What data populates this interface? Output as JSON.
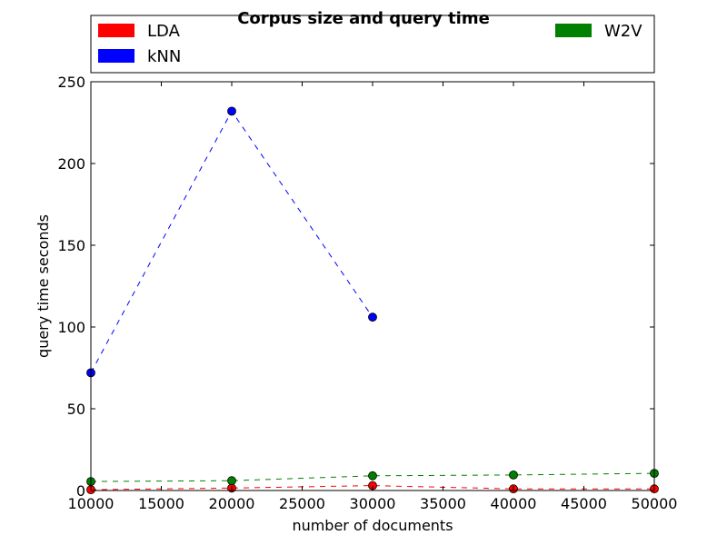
{
  "chart_data": {
    "type": "line",
    "title": "Corpus size and query time",
    "xlabel": "number of documents",
    "ylabel": "query time seconds",
    "xlim": [
      10000,
      50000
    ],
    "ylim": [
      0,
      250
    ],
    "x_ticks": [
      "10000",
      "15000",
      "20000",
      "25000",
      "30000",
      "35000",
      "40000",
      "45000",
      "50000"
    ],
    "y_ticks": [
      "0",
      "50",
      "100",
      "150",
      "200",
      "250"
    ],
    "grid": false,
    "legend_position": "top",
    "series": [
      {
        "name": "LDA",
        "color": "#ff0000",
        "line_style": "dashed",
        "x": [
          10000,
          20000,
          30000,
          40000,
          50000
        ],
        "y": [
          0.5,
          1.5,
          3.0,
          1.0,
          1.0
        ]
      },
      {
        "name": "kNN",
        "color": "#0000ff",
        "line_style": "dashed",
        "x": [
          10000,
          20000,
          30000
        ],
        "y": [
          72,
          232,
          106
        ]
      },
      {
        "name": "W2V",
        "color": "#008000",
        "line_style": "dashed",
        "x": [
          10000,
          20000,
          30000,
          40000,
          50000
        ],
        "y": [
          5.5,
          6.0,
          9.0,
          9.5,
          10.5
        ]
      }
    ]
  }
}
